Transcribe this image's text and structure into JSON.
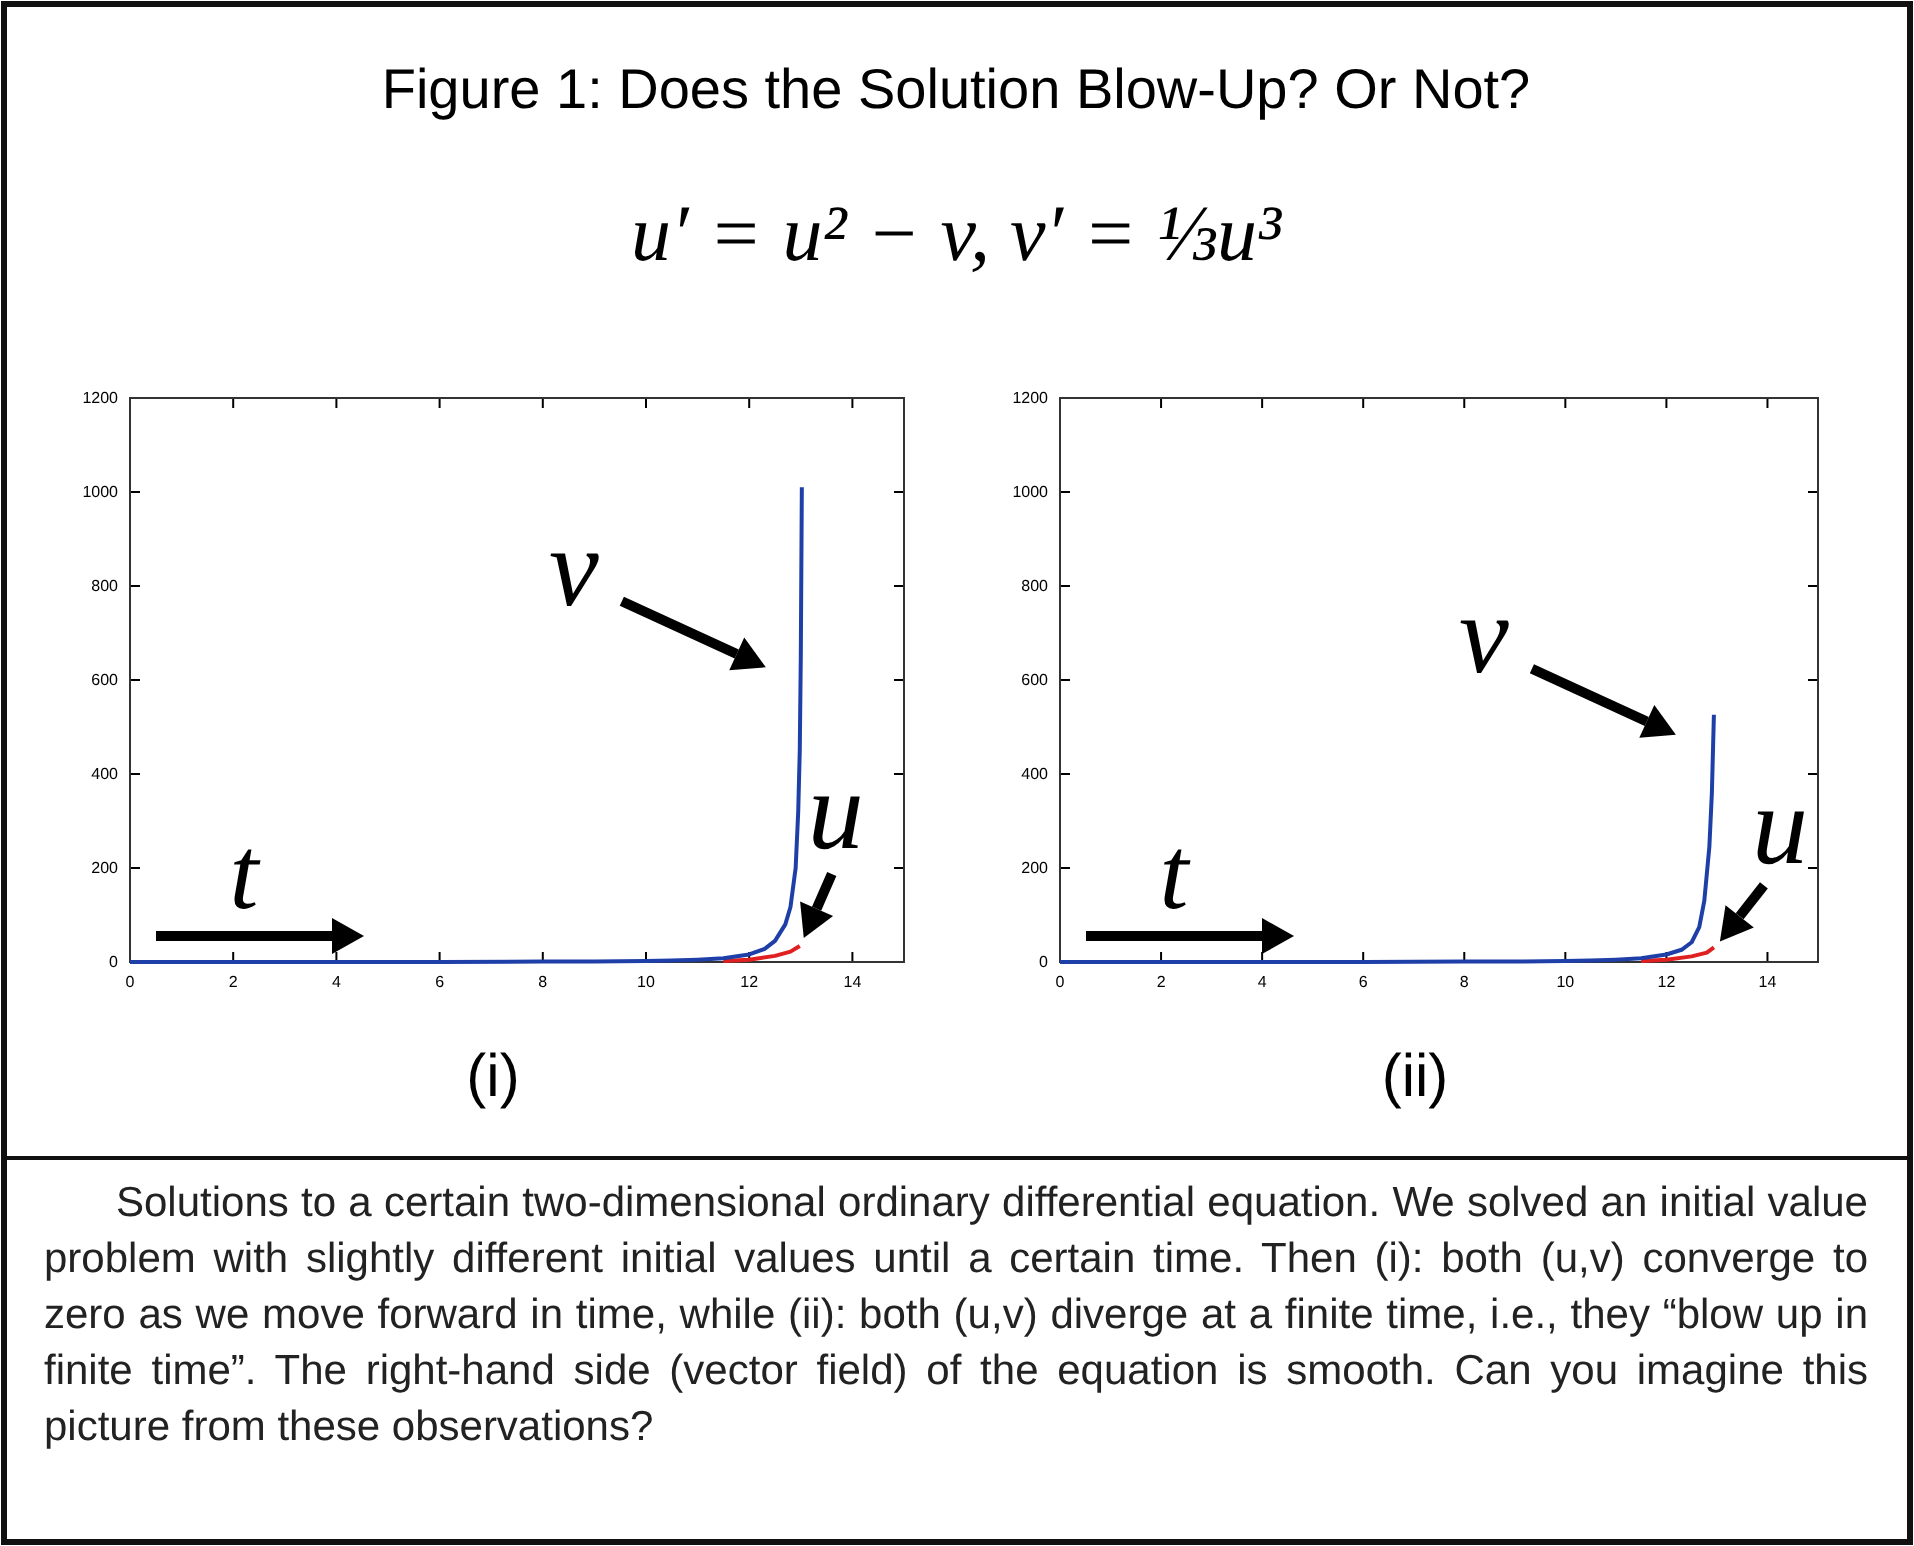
{
  "chart_data": [
    {
      "type": "line",
      "title": "Figure 1: Does the Solution Blow-Up? Or Not?",
      "subtitle": "u′ = u² − v,    v′ = ⅓u³",
      "xlabel": "(i)",
      "xlim": [
        0,
        15
      ],
      "xticks": [
        0,
        2,
        4,
        6,
        8,
        10,
        12,
        14
      ],
      "ylim": [
        0,
        1200
      ],
      "yticks": [
        0,
        200,
        400,
        600,
        800,
        1000,
        1200
      ],
      "grid": false,
      "series": [
        {
          "name": "v",
          "color": "#1f3fa8",
          "x": [
            0,
            2,
            4,
            6,
            8,
            9,
            10,
            10.5,
            11,
            11.5,
            12,
            12.3,
            12.5,
            12.7,
            12.8,
            12.9,
            12.95,
            12.98,
            13.0,
            13.02
          ],
          "values": [
            0,
            0,
            0,
            0,
            1,
            1,
            2,
            3,
            5,
            8,
            16,
            28,
            45,
            80,
            117,
            200,
            320,
            450,
            650,
            1010
          ]
        },
        {
          "name": "u",
          "color": "#e02020",
          "x": [
            11.5,
            12,
            12.5,
            12.8,
            12.98
          ],
          "values": [
            2,
            5,
            13,
            22,
            34
          ]
        }
      ],
      "annotations": [
        "t"
      ]
    },
    {
      "type": "line",
      "xlabel": "(ii)",
      "xlim": [
        0,
        15
      ],
      "xticks": [
        0,
        2,
        4,
        6,
        8,
        10,
        12,
        14
      ],
      "ylim": [
        0,
        1200
      ],
      "yticks": [
        0,
        200,
        400,
        600,
        800,
        1000,
        1200
      ],
      "grid": false,
      "series": [
        {
          "name": "v",
          "color": "#1f3fa8",
          "x": [
            0,
            2,
            4,
            6,
            8,
            9,
            10,
            10.5,
            11,
            11.5,
            12,
            12.3,
            12.5,
            12.65,
            12.75,
            12.85,
            12.9,
            12.94
          ],
          "values": [
            0,
            0,
            0,
            0,
            1,
            1,
            2,
            3,
            5,
            8,
            16,
            26,
            42,
            74,
            130,
            245,
            360,
            526
          ]
        },
        {
          "name": "u",
          "color": "#e02020",
          "x": [
            11.5,
            12,
            12.5,
            12.8,
            12.94
          ],
          "values": [
            2,
            5,
            12,
            20,
            31
          ]
        }
      ],
      "annotations": [
        "t",
        "Solutions to a certain two-dimensional ordinary differential equation. We solved an initial value problem with slightly different initial values until a certain time. Then (i): both (u,v) converge to zero as we move forward in time, while (ii): both (u,v) diverge at a finite time, i.e., they “blow up in finite time”. The right-hand side (vector field) of the equation is smooth. Can you imagine this picture from these observations?"
      ]
    }
  ]
}
